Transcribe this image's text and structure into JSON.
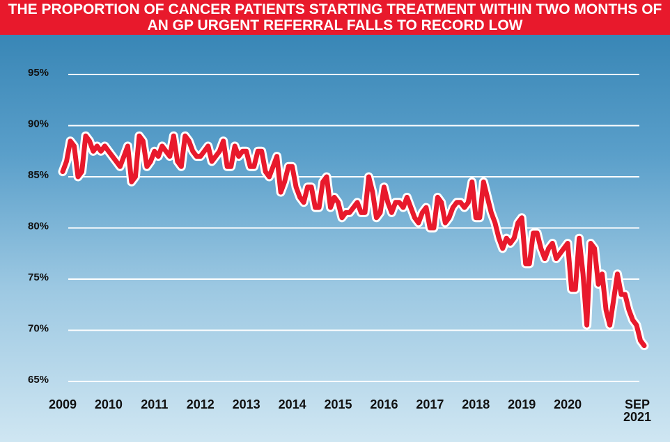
{
  "chart_data": {
    "type": "line",
    "title": "THE PROPORTION OF CANCER PATIENTS STARTING TREATMENT WITHIN TWO MONTHS OF AN GP URGENT REFERRAL FALLS TO RECORD LOW",
    "categories": [
      "2009",
      null,
      null,
      null,
      null,
      null,
      null,
      null,
      null,
      null,
      null,
      null,
      "2010",
      null,
      null,
      null,
      null,
      null,
      null,
      null,
      null,
      null,
      null,
      null,
      "2011",
      null,
      null,
      null,
      null,
      null,
      null,
      null,
      null,
      null,
      null,
      null,
      "2012",
      null,
      null,
      null,
      null,
      null,
      null,
      null,
      null,
      null,
      null,
      null,
      "2013",
      null,
      null,
      null,
      null,
      null,
      null,
      null,
      null,
      null,
      null,
      null,
      "2014",
      null,
      null,
      null,
      null,
      null,
      null,
      null,
      null,
      null,
      null,
      null,
      "2015",
      null,
      null,
      null,
      null,
      null,
      null,
      null,
      null,
      null,
      null,
      null,
      "2016",
      null,
      null,
      null,
      null,
      null,
      null,
      null,
      null,
      null,
      null,
      null,
      "2017",
      null,
      null,
      null,
      null,
      null,
      null,
      null,
      null,
      null,
      null,
      null,
      "2018",
      null,
      null,
      null,
      null,
      null,
      null,
      null,
      null,
      null,
      null,
      null,
      "2019",
      null,
      null,
      null,
      null,
      null,
      null,
      null,
      null,
      null,
      null,
      null,
      "2020",
      null,
      null,
      null,
      null,
      null,
      null,
      null,
      null,
      null,
      null,
      null,
      null,
      null,
      null,
      null,
      null,
      null,
      null,
      null,
      "SEP 2021"
    ],
    "series": [
      {
        "name": null,
        "color": "#e8192c",
        "values": [
          85.5,
          86.5,
          88.5,
          88,
          85,
          85.5,
          89,
          88.5,
          87.5,
          88,
          87.5,
          88,
          87.5,
          87,
          86.5,
          86,
          87,
          88,
          84.5,
          85,
          89,
          88.5,
          86,
          86.5,
          87.5,
          87,
          88,
          87.5,
          87,
          89,
          86.5,
          86,
          89,
          88.5,
          87.5,
          87,
          87,
          87.5,
          88,
          86.5,
          87,
          87.5,
          88.5,
          86,
          86,
          88,
          87,
          87.5,
          87.5,
          86,
          86,
          87.5,
          87.5,
          85.5,
          85,
          86,
          87,
          83.5,
          84.5,
          86,
          86,
          84,
          83,
          82.5,
          84,
          84,
          82,
          82,
          84.5,
          85,
          82,
          83,
          82.5,
          81,
          81.5,
          81.5,
          82,
          82.5,
          81.5,
          81.5,
          85,
          83.5,
          81,
          81.5,
          84,
          82.5,
          81.5,
          82.5,
          82.5,
          82,
          83,
          82,
          81,
          80.5,
          81.5,
          82,
          80,
          80,
          83,
          82.5,
          80.5,
          81,
          82,
          82.5,
          82.5,
          82,
          82.5,
          84.5,
          81,
          81,
          84.5,
          83,
          81.5,
          80.5,
          79,
          78,
          79,
          78.5,
          79,
          80.5,
          81,
          76.5,
          76.5,
          79.5,
          79.5,
          78,
          77,
          78,
          78.5,
          77,
          77.5,
          78,
          78.5,
          74,
          74,
          79,
          75.5,
          70.5,
          78.5,
          78,
          74.5,
          75.5,
          72,
          70.5,
          73,
          75.5,
          73.5,
          73.5,
          72,
          71,
          70.5,
          69,
          68.5
        ]
      }
    ],
    "ylim": [
      65,
      95
    ],
    "yticks": [
      {
        "value": 95,
        "label": "95%"
      },
      {
        "value": 90,
        "label": "90%"
      },
      {
        "value": 85,
        "label": "85%"
      },
      {
        "value": 80,
        "label": "80%"
      },
      {
        "value": 75,
        "label": "75%"
      },
      {
        "value": 70,
        "label": "70%"
      },
      {
        "value": 65,
        "label": "65%"
      }
    ],
    "grid": true
  }
}
